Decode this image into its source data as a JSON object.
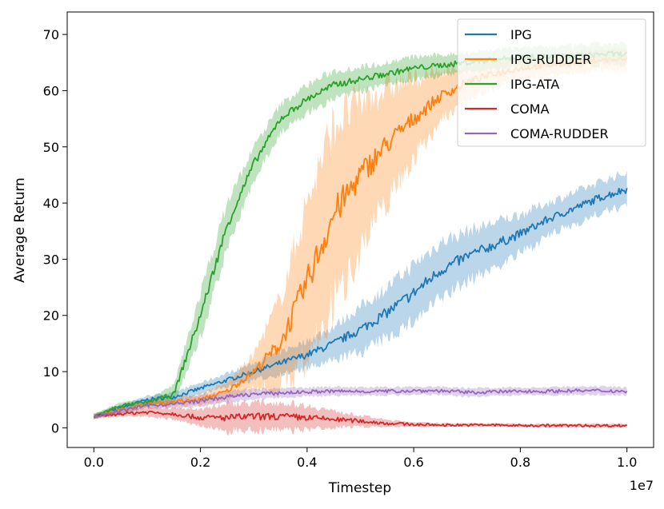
{
  "chart_data": {
    "type": "line",
    "title": "",
    "xlabel": "Timestep",
    "ylabel": "Average Return",
    "x_offset_label": "1e7",
    "xlim": [
      -0.05,
      1.05
    ],
    "ylim": [
      -3.5,
      74
    ],
    "x_ticks": [
      0.0,
      0.2,
      0.4,
      0.6,
      0.8,
      1.0
    ],
    "x_tick_labels": [
      "0.0",
      "0.2",
      "0.4",
      "0.6",
      "0.8",
      "1.0"
    ],
    "y_ticks": [
      0,
      10,
      20,
      30,
      40,
      50,
      60,
      70
    ],
    "y_tick_labels": [
      "0",
      "10",
      "20",
      "30",
      "40",
      "50",
      "60",
      "70"
    ],
    "grid": false,
    "legend_position": "top-right",
    "x": [
      0.0,
      0.05,
      0.1,
      0.15,
      0.2,
      0.25,
      0.3,
      0.35,
      0.4,
      0.45,
      0.5,
      0.55,
      0.6,
      0.65,
      0.7,
      0.75,
      0.8,
      0.85,
      0.9,
      0.95,
      1.0
    ],
    "series": [
      {
        "name": "IPG",
        "color": "#1f77b4",
        "values": [
          2.0,
          3.5,
          5.0,
          5.5,
          7.0,
          8.5,
          10.0,
          11.5,
          13.0,
          15.0,
          17.5,
          20.5,
          24.0,
          28.0,
          30.5,
          32.5,
          34.5,
          37.0,
          39.0,
          41.0,
          42.5
        ],
        "band": [
          0.5,
          0.6,
          0.7,
          0.8,
          1.0,
          1.2,
          1.5,
          2.0,
          2.5,
          3.0,
          4.0,
          4.5,
          5.0,
          5.0,
          4.5,
          4.0,
          3.5,
          3.0,
          2.8,
          2.8,
          3.0
        ]
      },
      {
        "name": "IPG-RUDDER",
        "color": "#ff7f0e",
        "values": [
          2.0,
          3.2,
          4.2,
          4.6,
          5.0,
          6.5,
          10.0,
          15.0,
          26.0,
          38.0,
          45.0,
          50.5,
          55.0,
          59.0,
          61.5,
          63.0,
          64.0,
          64.5,
          65.0,
          65.5,
          65.5
        ],
        "band": [
          0.5,
          0.6,
          0.7,
          0.8,
          1.0,
          1.5,
          3.0,
          8.0,
          14.0,
          16.0,
          13.0,
          10.0,
          7.0,
          4.5,
          3.0,
          2.5,
          2.0,
          2.0,
          1.8,
          1.8,
          1.8
        ]
      },
      {
        "name": "IPG-ATA",
        "color": "#2ca02c",
        "values": [
          2.0,
          4.0,
          4.5,
          6.0,
          20.0,
          36.0,
          47.0,
          55.0,
          58.5,
          61.0,
          62.0,
          63.0,
          64.0,
          64.5,
          65.0,
          65.5,
          66.0,
          66.0,
          66.2,
          66.5,
          66.5
        ],
        "band": [
          0.4,
          0.5,
          0.6,
          1.5,
          4.0,
          4.0,
          3.0,
          2.5,
          2.5,
          2.5,
          2.2,
          2.0,
          2.0,
          1.8,
          1.8,
          1.8,
          1.8,
          1.8,
          1.8,
          1.8,
          1.8
        ]
      },
      {
        "name": "COMA",
        "color": "#d62728",
        "values": [
          2.0,
          2.5,
          2.8,
          2.5,
          1.8,
          1.8,
          2.0,
          2.0,
          1.8,
          1.5,
          1.2,
          0.8,
          0.6,
          0.5,
          0.5,
          0.5,
          0.4,
          0.4,
          0.4,
          0.4,
          0.4
        ],
        "band": [
          0.3,
          0.5,
          0.8,
          1.0,
          1.5,
          2.5,
          2.5,
          2.5,
          2.2,
          1.5,
          1.0,
          0.6,
          0.4,
          0.3,
          0.3,
          0.3,
          0.3,
          0.3,
          0.3,
          0.3,
          0.3
        ]
      },
      {
        "name": "COMA-RUDDER",
        "color": "#9467bd",
        "values": [
          2.0,
          3.0,
          4.0,
          4.2,
          4.8,
          5.5,
          6.0,
          6.2,
          6.4,
          6.5,
          6.5,
          6.5,
          6.6,
          6.6,
          6.3,
          6.4,
          6.5,
          6.5,
          6.6,
          6.6,
          6.5
        ],
        "band": [
          0.3,
          0.4,
          0.5,
          0.8,
          1.0,
          1.0,
          0.9,
          0.8,
          0.8,
          0.8,
          0.7,
          0.7,
          0.7,
          0.7,
          0.8,
          0.7,
          0.7,
          0.7,
          0.7,
          0.7,
          0.7
        ]
      }
    ]
  }
}
